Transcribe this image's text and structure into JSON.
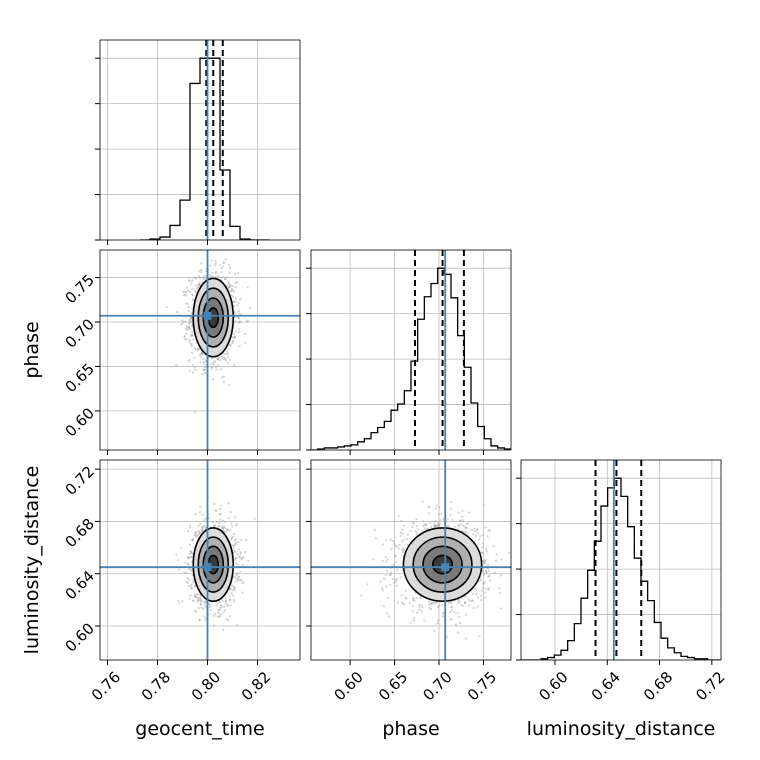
{
  "chart_data": {
    "type": "corner",
    "parameters": [
      "geocent_time",
      "phase",
      "luminosity_distance"
    ],
    "axis_labels": {
      "geocent_time": "geocent_time",
      "phase": "phase",
      "luminosity_distance": "luminosity_distance"
    },
    "ranges": {
      "geocent_time": [
        0.757,
        0.837
      ],
      "phase": [
        0.556,
        0.781
      ],
      "luminosity_distance": [
        0.574,
        0.727
      ]
    },
    "ticks": {
      "geocent_time": [
        "0.76",
        "0.78",
        "0.80",
        "0.82"
      ],
      "phase": [
        "0.60",
        "0.65",
        "0.70",
        "0.75"
      ],
      "luminosity_distance": [
        "0.60",
        "0.64",
        "0.68",
        "0.72"
      ]
    },
    "injected_values": {
      "geocent_time": 0.8,
      "phase": 0.707,
      "luminosity_distance": 0.645
    },
    "quantiles": {
      "geocent_time": [
        0.7995,
        0.8023,
        0.8061
      ],
      "phase": [
        0.673,
        0.704,
        0.728
      ],
      "luminosity_distance": [
        0.631,
        0.647,
        0.666
      ]
    },
    "histograms": {
      "geocent_time": {
        "edges": [
          0.773,
          0.777,
          0.781,
          0.785,
          0.789,
          0.793,
          0.797,
          0.801,
          0.805,
          0.809,
          0.813,
          0.817,
          0.821,
          0.825
        ],
        "counts": [
          0,
          1,
          3,
          15,
          41,
          161,
          187,
          187,
          72,
          14,
          1,
          0,
          0
        ]
      },
      "phase": {
        "edges": [
          0.556,
          0.5635,
          0.571,
          0.5785,
          0.586,
          0.5935,
          0.601,
          0.6085,
          0.616,
          0.6235,
          0.631,
          0.6385,
          0.646,
          0.6535,
          0.661,
          0.6685,
          0.676,
          0.6835,
          0.691,
          0.6985,
          0.706,
          0.7135,
          0.721,
          0.7285,
          0.736,
          0.7435,
          0.751,
          0.7585,
          0.766,
          0.7735,
          0.781
        ],
        "counts": [
          0,
          1,
          2,
          2,
          3,
          4,
          5,
          8,
          11,
          17,
          22,
          28,
          39,
          45,
          58,
          87,
          128,
          150,
          163,
          178,
          172,
          149,
          112,
          81,
          46,
          23,
          11,
          4,
          2,
          1
        ]
      },
      "luminosity_distance": {
        "edges": [
          0.574,
          0.5791,
          0.5842,
          0.5893,
          0.5944,
          0.5995,
          0.6046,
          0.6097,
          0.6148,
          0.6199,
          0.625,
          0.6301,
          0.6352,
          0.6403,
          0.6454,
          0.6505,
          0.6556,
          0.6607,
          0.6658,
          0.6709,
          0.676,
          0.6811,
          0.6862,
          0.6913,
          0.6964,
          0.7015,
          0.7066,
          0.7117,
          0.7168,
          0.7219,
          0.727
        ],
        "counts": [
          0,
          0,
          0,
          1,
          2,
          4,
          8,
          16,
          30,
          51,
          74,
          98,
          127,
          142,
          150,
          135,
          110,
          84,
          65,
          49,
          31,
          18,
          10,
          6,
          3,
          2,
          1,
          1,
          0,
          0
        ]
      }
    },
    "gaussian_2d": {
      "phase|geocent_time": {
        "mean": [
          0.8023,
          0.705
        ],
        "sigma": [
          0.004,
          0.022
        ]
      },
      "luminosity_distance|geocent_time": {
        "mean": [
          0.8023,
          0.647
        ],
        "sigma": [
          0.004,
          0.014
        ]
      },
      "luminosity_distance|phase": {
        "mean": [
          0.704,
          0.647
        ],
        "sigma": [
          0.022,
          0.014
        ]
      }
    },
    "contour_levels_sigma": [
      0.5,
      1.0,
      1.5,
      2.0
    ],
    "colors": {
      "truth": "#4682b4",
      "hist": "#000000",
      "grid": "#bdbdbd",
      "points": "#9e9e9e"
    }
  }
}
